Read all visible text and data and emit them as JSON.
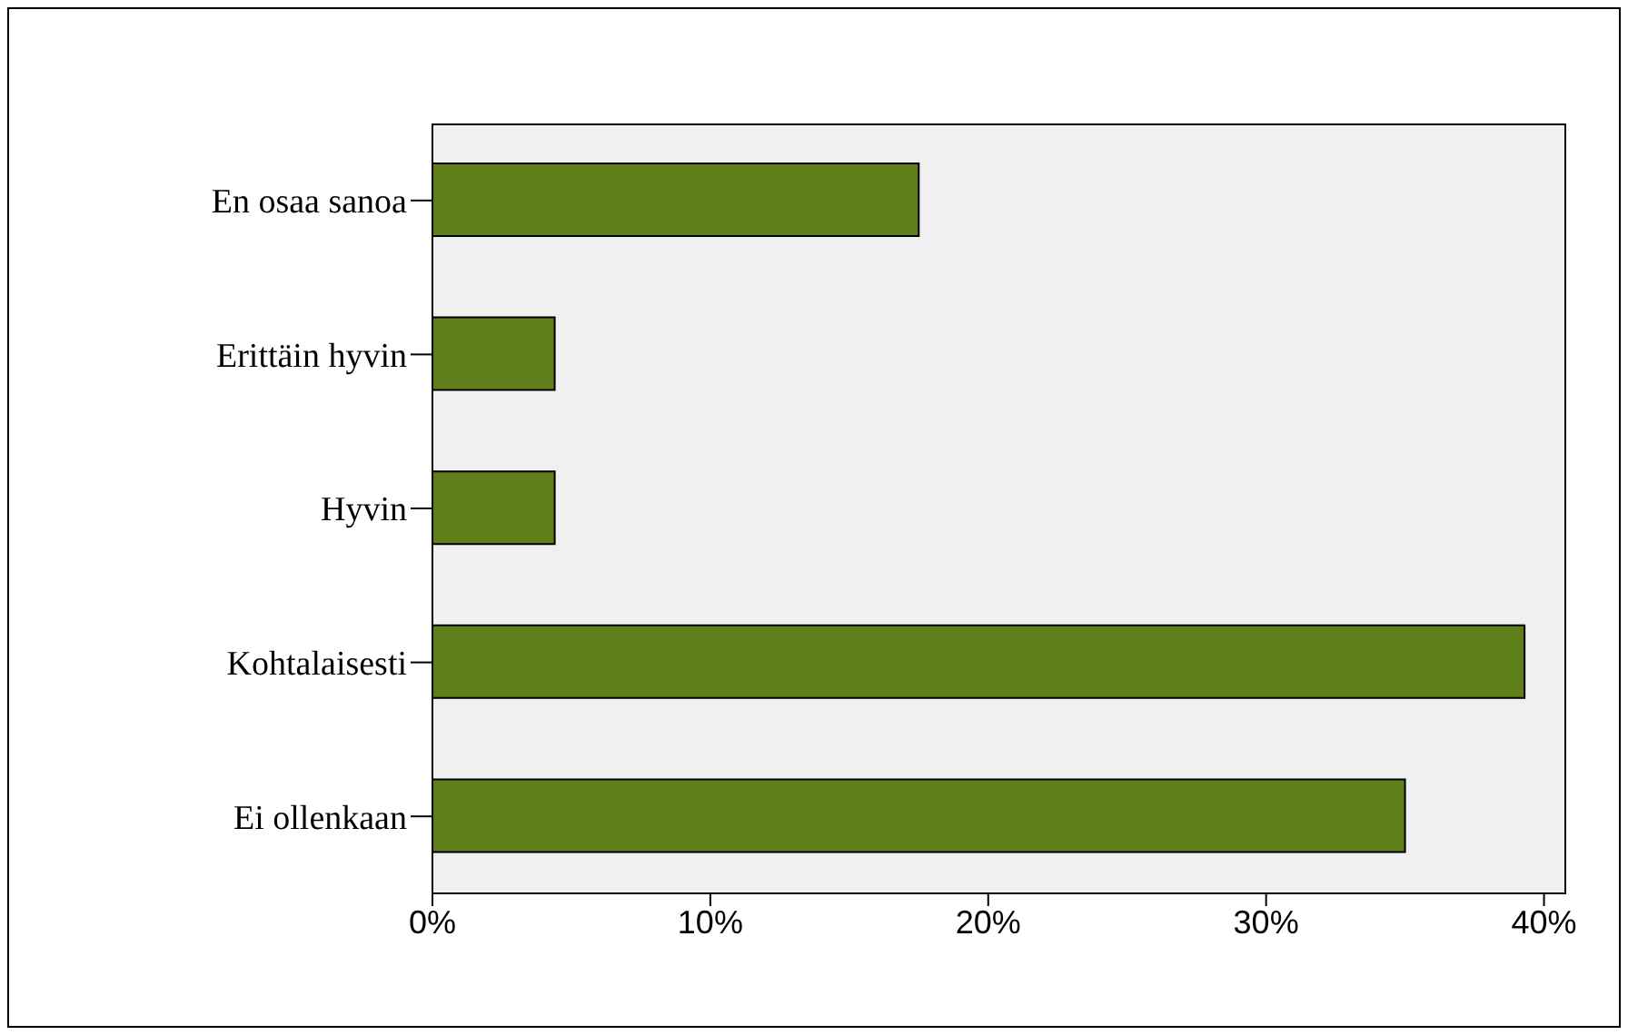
{
  "chart_data": {
    "type": "bar",
    "orientation": "horizontal",
    "categories": [
      "En osaa sanoa",
      "Erittäin hyvin",
      "Hyvin",
      "Kohtalaisesti",
      "Ei ollenkaan"
    ],
    "values": [
      17.5,
      4.4,
      4.4,
      39.3,
      35.0
    ],
    "color": "#5f7f1a",
    "xlim": [
      0,
      40.8
    ],
    "xticks": [
      {
        "value": 0,
        "label": "0%"
      },
      {
        "value": 10,
        "label": "10%"
      },
      {
        "value": 20,
        "label": "20%"
      },
      {
        "value": 30,
        "label": "30%"
      },
      {
        "value": 40,
        "label": "40%"
      }
    ]
  }
}
